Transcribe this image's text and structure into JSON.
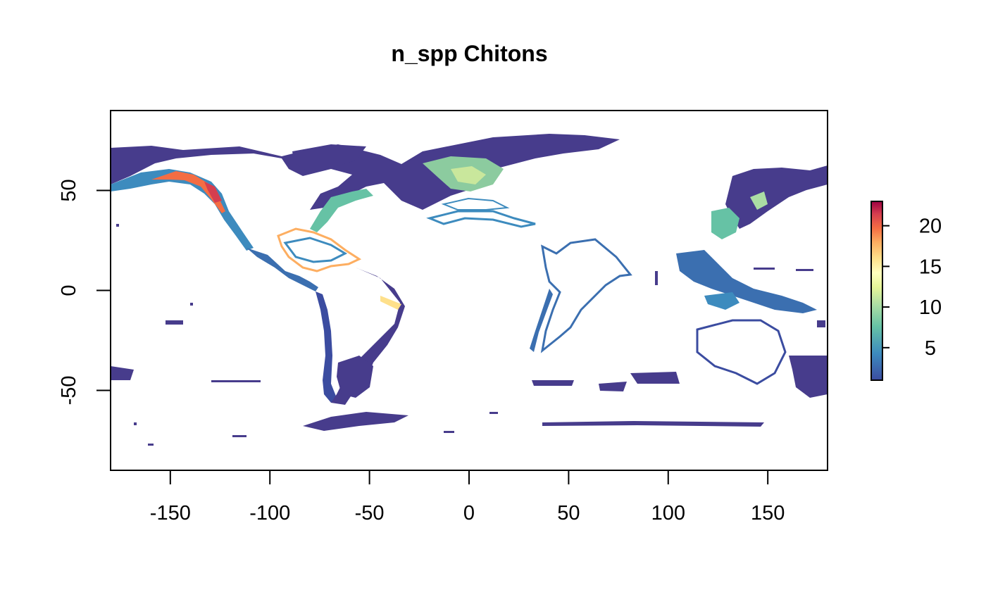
{
  "title": "n_spp Chitons",
  "map": {
    "x_axis": {
      "range": [
        -180,
        180
      ],
      "ticks": [
        "-150",
        "-100",
        "-50",
        "0",
        "50",
        "100",
        "150"
      ]
    },
    "y_axis": {
      "range": [
        -90,
        90
      ],
      "ticks": [
        "-50",
        "0",
        "50"
      ]
    },
    "layer": "n_spp",
    "palette": [
      "#3B4CA0",
      "#3D8BBE",
      "#66C2A5",
      "#ABDDA4",
      "#E6F598",
      "#FFFFBF",
      "#FEE08B",
      "#FDAE61",
      "#F46D43",
      "#D53E4F",
      "#9E0142"
    ],
    "land_color": "#ffffff"
  },
  "legend": {
    "position": "right",
    "range": [
      1,
      23
    ],
    "ticks": [
      "5",
      "10",
      "15",
      "20"
    ]
  }
}
